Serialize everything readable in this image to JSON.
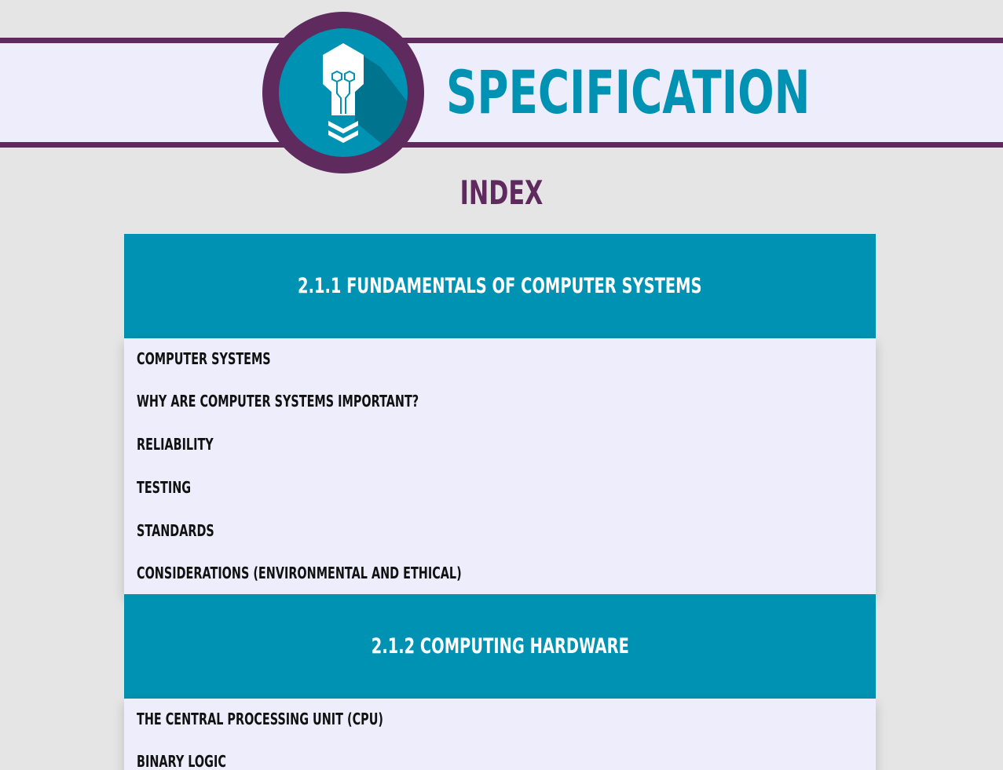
{
  "site": {
    "title": "SPECIFICATION",
    "index_heading": "INDEX"
  },
  "logo": {
    "icon": "lightbulb-robot-icon",
    "colors": {
      "ring": "#5f2a5e",
      "disc": "#0092b3",
      "shadow": "#006f88",
      "glyph": "#ffffff"
    }
  },
  "colors": {
    "accent": "#0092b3",
    "brand": "#5f2a5e",
    "band": "#eeedfc",
    "background": "#e5e5e5"
  },
  "sections": [
    {
      "title": "2.1.1 FUNDAMENTALS OF COMPUTER SYSTEMS",
      "topics": [
        "COMPUTER SYSTEMS",
        "WHY ARE COMPUTER SYSTEMS IMPORTANT?",
        "RELIABILITY",
        "TESTING",
        "STANDARDS",
        "CONSIDERATIONS (ENVIRONMENTAL AND ETHICAL)"
      ]
    },
    {
      "title": "2.1.2 COMPUTING HARDWARE",
      "topics": [
        "THE CENTRAL PROCESSING UNIT (CPU)",
        "BINARY LOGIC"
      ]
    }
  ]
}
